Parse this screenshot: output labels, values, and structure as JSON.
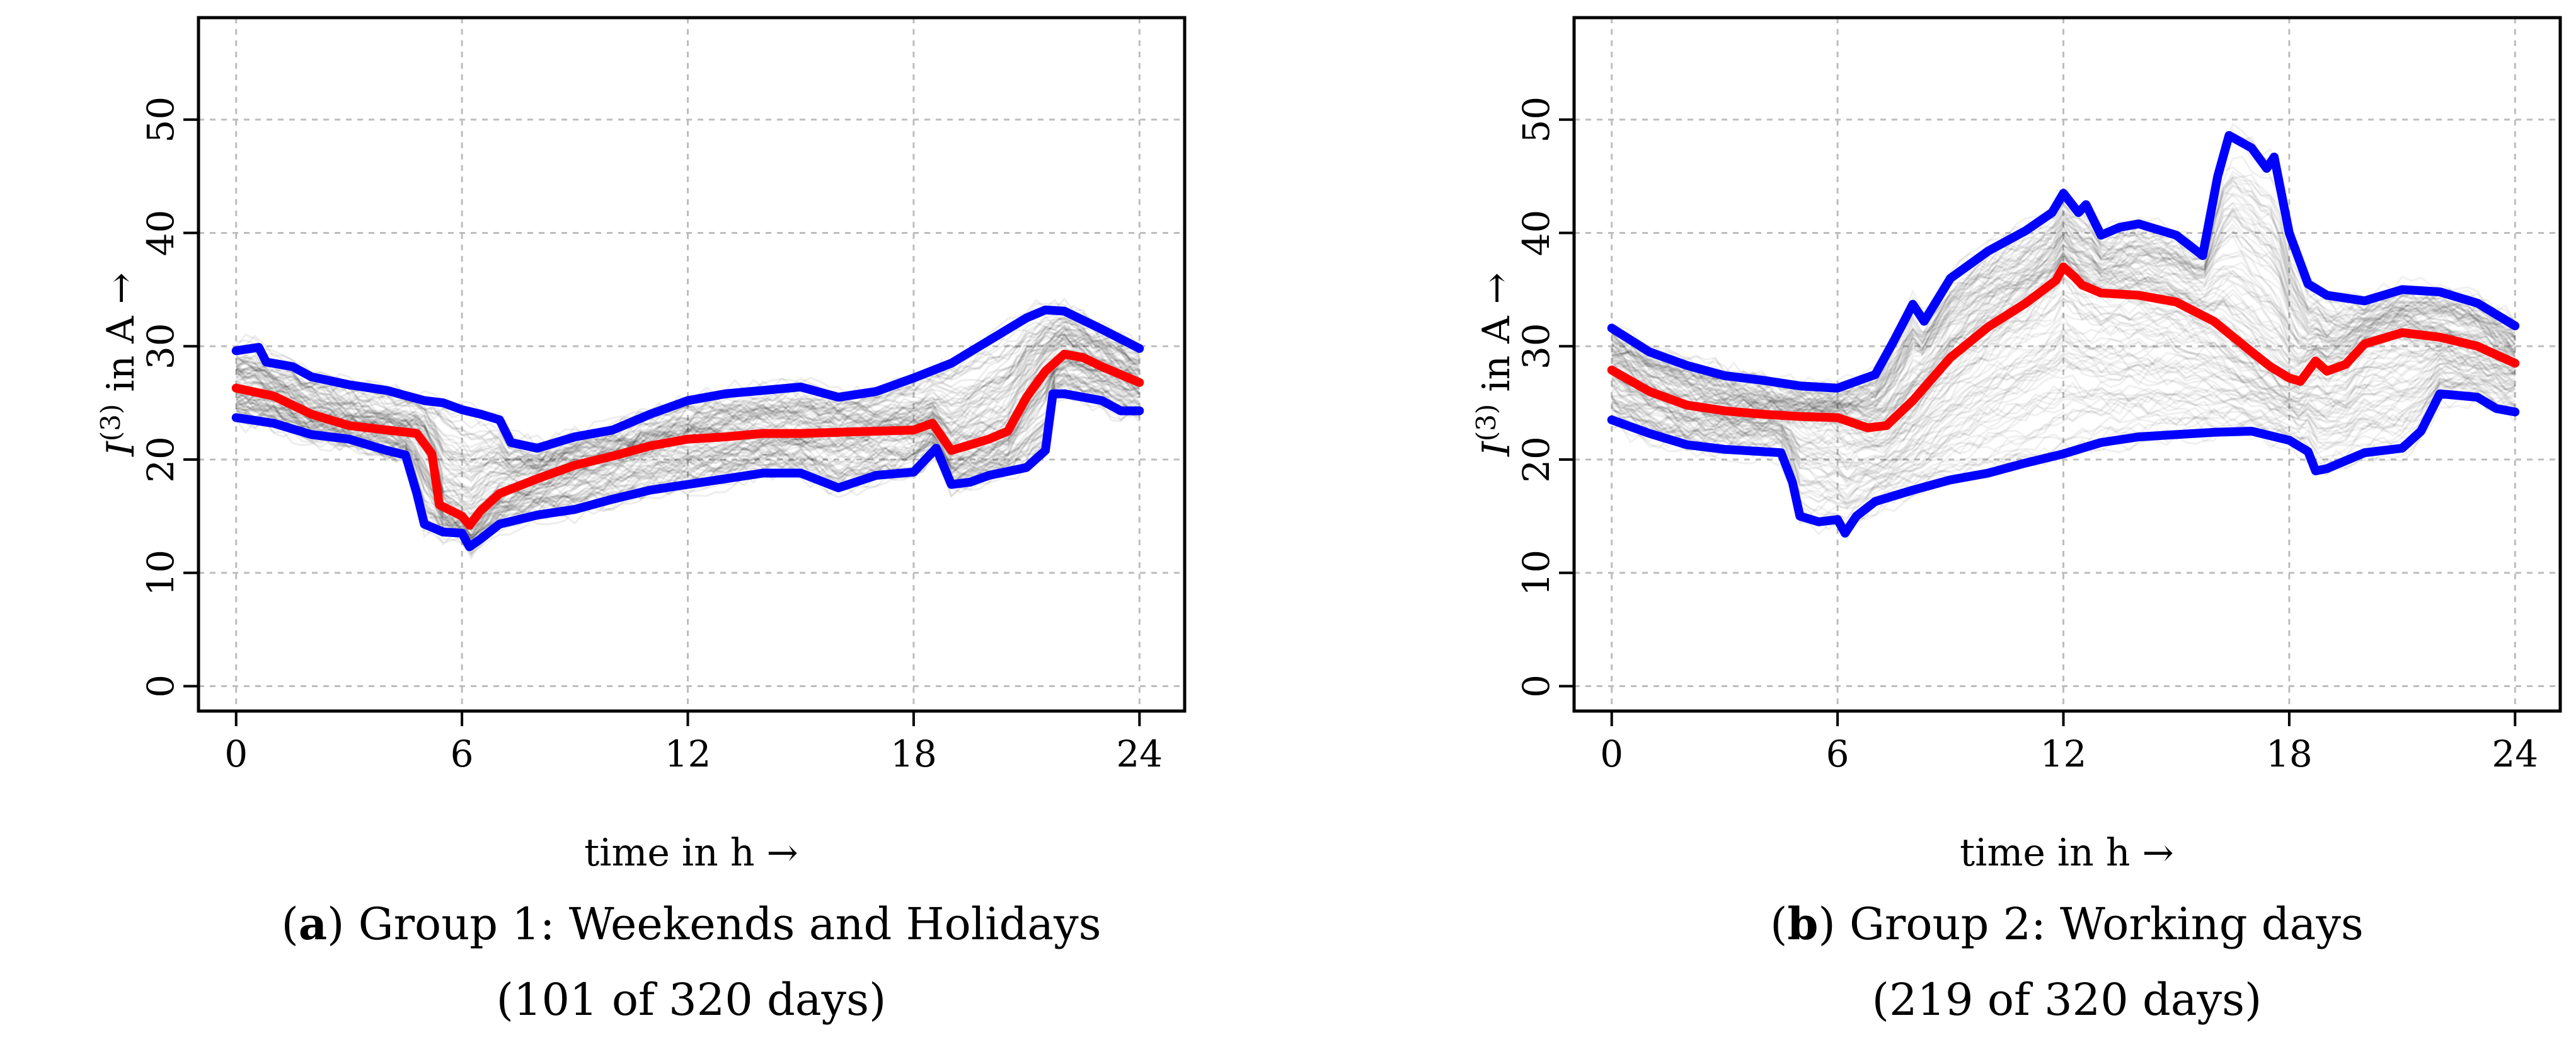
{
  "panels": [
    {
      "id": "a",
      "caption_letter": "a",
      "caption_rest": ") Group 1: Weekends and Holidays",
      "caption_line2": "(101 of 320 days)"
    },
    {
      "id": "b",
      "caption_letter": "b",
      "caption_rest": ") Group 2: Working days",
      "caption_line2": "(219 of 320 days)"
    }
  ],
  "chart_data": [
    {
      "type": "line",
      "title": "",
      "xlabel": "time in h →",
      "ylabel_main": "I",
      "ylabel_sup": "(3)",
      "ylabel_rest": " in A →",
      "xlim": [
        -1,
        25.2
      ],
      "ylim": [
        -2.2,
        59
      ],
      "xticks": [
        0,
        6,
        12,
        18,
        24
      ],
      "yticks": [
        0,
        10,
        20,
        30,
        40,
        50
      ],
      "grid": true,
      "series": [
        {
          "name": "upper",
          "color": "#0000ff",
          "points": [
            [
              0,
              29.6
            ],
            [
              0.6,
              29.9
            ],
            [
              0.8,
              28.6
            ],
            [
              1.5,
              28.2
            ],
            [
              2,
              27.3
            ],
            [
              3,
              26.6
            ],
            [
              4,
              26.1
            ],
            [
              5,
              25.2
            ],
            [
              5.5,
              25
            ],
            [
              6,
              24.4
            ],
            [
              6.5,
              24
            ],
            [
              7,
              23.5
            ],
            [
              7.3,
              21.5
            ],
            [
              8,
              21
            ],
            [
              9,
              22
            ],
            [
              10,
              22.6
            ],
            [
              11,
              24
            ],
            [
              12,
              25.2
            ],
            [
              13,
              25.8
            ],
            [
              14,
              26.1
            ],
            [
              15,
              26.4
            ],
            [
              16,
              25.5
            ],
            [
              17,
              26
            ],
            [
              18,
              27.2
            ],
            [
              19,
              28.5
            ],
            [
              20,
              30.5
            ],
            [
              21,
              32.5
            ],
            [
              21.5,
              33.2
            ],
            [
              22,
              33.1
            ],
            [
              23,
              31.5
            ],
            [
              24,
              29.8
            ]
          ]
        },
        {
          "name": "median",
          "color": "#ff0000",
          "points": [
            [
              0,
              26.3
            ],
            [
              1,
              25.6
            ],
            [
              2,
              24
            ],
            [
              3,
              23
            ],
            [
              4,
              22.6
            ],
            [
              4.8,
              22.3
            ],
            [
              5.2,
              20.5
            ],
            [
              5.4,
              16
            ],
            [
              6,
              15
            ],
            [
              6.2,
              14.2
            ],
            [
              6.5,
              15.5
            ],
            [
              7,
              17
            ],
            [
              8,
              18.3
            ],
            [
              9,
              19.5
            ],
            [
              10,
              20.3
            ],
            [
              11,
              21.2
            ],
            [
              12,
              21.8
            ],
            [
              13,
              22
            ],
            [
              14,
              22.3
            ],
            [
              15,
              22.3
            ],
            [
              16,
              22.4
            ],
            [
              17,
              22.5
            ],
            [
              18,
              22.6
            ],
            [
              18.5,
              23.2
            ],
            [
              19,
              20.8
            ],
            [
              20,
              21.8
            ],
            [
              20.5,
              22.5
            ],
            [
              21,
              25.5
            ],
            [
              21.5,
              27.8
            ],
            [
              22,
              29.3
            ],
            [
              22.5,
              29
            ],
            [
              23,
              28.2
            ],
            [
              24,
              26.8
            ]
          ]
        },
        {
          "name": "lower",
          "color": "#0000ff",
          "points": [
            [
              0,
              23.7
            ],
            [
              1,
              23.2
            ],
            [
              2,
              22.2
            ],
            [
              3,
              21.8
            ],
            [
              4,
              20.8
            ],
            [
              4.5,
              20.4
            ],
            [
              4.8,
              17
            ],
            [
              5,
              14.3
            ],
            [
              5.5,
              13.6
            ],
            [
              6,
              13.5
            ],
            [
              6.2,
              12.3
            ],
            [
              6.5,
              13
            ],
            [
              7,
              14.3
            ],
            [
              8,
              15.1
            ],
            [
              9,
              15.6
            ],
            [
              10,
              16.5
            ],
            [
              11,
              17.3
            ],
            [
              12,
              17.8
            ],
            [
              13,
              18.3
            ],
            [
              14,
              18.8
            ],
            [
              15,
              18.8
            ],
            [
              16,
              17.5
            ],
            [
              17,
              18.6
            ],
            [
              18,
              18.9
            ],
            [
              18.6,
              21
            ],
            [
              19,
              17.8
            ],
            [
              19.5,
              18
            ],
            [
              20,
              18.6
            ],
            [
              21,
              19.3
            ],
            [
              21.5,
              20.8
            ],
            [
              21.7,
              25.8
            ],
            [
              22,
              25.8
            ],
            [
              23,
              25.2
            ],
            [
              23.5,
              24.3
            ],
            [
              24,
              24.3
            ]
          ]
        }
      ],
      "background_band": {
        "name": "101 daily profiles",
        "color": "#000000",
        "opacity": 0.07,
        "count": 101
      }
    },
    {
      "type": "line",
      "title": "",
      "xlabel": "time in h →",
      "ylabel_main": "I",
      "ylabel_sup": "(3)",
      "ylabel_rest": " in A →",
      "xlim": [
        -1,
        25.2
      ],
      "ylim": [
        -2.2,
        59
      ],
      "xticks": [
        0,
        6,
        12,
        18,
        24
      ],
      "yticks": [
        0,
        10,
        20,
        30,
        40,
        50
      ],
      "grid": true,
      "series": [
        {
          "name": "upper",
          "color": "#0000ff",
          "points": [
            [
              0,
              31.6
            ],
            [
              1,
              29.5
            ],
            [
              2,
              28.3
            ],
            [
              3,
              27.4
            ],
            [
              4,
              27
            ],
            [
              5,
              26.5
            ],
            [
              6,
              26.3
            ],
            [
              7,
              27.5
            ],
            [
              7.5,
              30.5
            ],
            [
              8,
              33.7
            ],
            [
              8.3,
              32.2
            ],
            [
              9,
              36
            ],
            [
              10,
              38.4
            ],
            [
              11,
              40.2
            ],
            [
              11.7,
              41.8
            ],
            [
              12,
              43.5
            ],
            [
              12.4,
              41.8
            ],
            [
              12.6,
              42.5
            ],
            [
              13,
              39.8
            ],
            [
              13.5,
              40.5
            ],
            [
              14,
              40.8
            ],
            [
              15,
              39.8
            ],
            [
              15.7,
              38
            ],
            [
              16.1,
              45
            ],
            [
              16.4,
              48.6
            ],
            [
              17,
              47.5
            ],
            [
              17.4,
              45.7
            ],
            [
              17.6,
              46.7
            ],
            [
              18,
              40
            ],
            [
              18.5,
              35.5
            ],
            [
              19,
              34.5
            ],
            [
              20,
              34
            ],
            [
              21,
              35
            ],
            [
              22,
              34.8
            ],
            [
              23,
              33.8
            ],
            [
              24,
              31.8
            ]
          ]
        },
        {
          "name": "median",
          "color": "#ff0000",
          "points": [
            [
              0,
              27.9
            ],
            [
              1,
              26
            ],
            [
              2,
              24.8
            ],
            [
              3,
              24.3
            ],
            [
              4,
              24
            ],
            [
              5,
              23.8
            ],
            [
              6,
              23.7
            ],
            [
              6.8,
              22.8
            ],
            [
              7.3,
              23
            ],
            [
              8,
              25.2
            ],
            [
              9,
              29
            ],
            [
              10,
              31.7
            ],
            [
              11,
              33.8
            ],
            [
              11.8,
              35.8
            ],
            [
              12,
              37
            ],
            [
              12.3,
              36.1
            ],
            [
              12.5,
              35.4
            ],
            [
              13,
              34.7
            ],
            [
              14,
              34.5
            ],
            [
              15,
              33.9
            ],
            [
              16,
              32.2
            ],
            [
              17,
              29.5
            ],
            [
              17.5,
              28.2
            ],
            [
              18,
              27.2
            ],
            [
              18.3,
              26.9
            ],
            [
              18.7,
              28.7
            ],
            [
              19,
              27.8
            ],
            [
              19.5,
              28.4
            ],
            [
              20,
              30.2
            ],
            [
              21,
              31.2
            ],
            [
              22,
              30.8
            ],
            [
              23,
              30
            ],
            [
              24,
              28.5
            ]
          ]
        },
        {
          "name": "lower",
          "color": "#0000ff",
          "points": [
            [
              0,
              23.5
            ],
            [
              1,
              22.3
            ],
            [
              2,
              21.3
            ],
            [
              3,
              20.9
            ],
            [
              4,
              20.7
            ],
            [
              4.5,
              20.6
            ],
            [
              4.8,
              18
            ],
            [
              5,
              15
            ],
            [
              5.5,
              14.5
            ],
            [
              6,
              14.7
            ],
            [
              6.2,
              13.5
            ],
            [
              6.5,
              15
            ],
            [
              7,
              16.3
            ],
            [
              8,
              17.3
            ],
            [
              9,
              18.2
            ],
            [
              10,
              18.8
            ],
            [
              11,
              19.7
            ],
            [
              12,
              20.5
            ],
            [
              13,
              21.5
            ],
            [
              14,
              22
            ],
            [
              15,
              22.2
            ],
            [
              16,
              22.4
            ],
            [
              17,
              22.5
            ],
            [
              18,
              21.7
            ],
            [
              18.5,
              20.7
            ],
            [
              18.7,
              19
            ],
            [
              19,
              19.2
            ],
            [
              20,
              20.6
            ],
            [
              21,
              21
            ],
            [
              21.5,
              22.5
            ],
            [
              22,
              25.8
            ],
            [
              23,
              25.5
            ],
            [
              23.5,
              24.5
            ],
            [
              24,
              24.2
            ]
          ]
        }
      ],
      "background_band": {
        "name": "219 daily profiles",
        "color": "#000000",
        "opacity": 0.06,
        "count": 219
      }
    }
  ]
}
